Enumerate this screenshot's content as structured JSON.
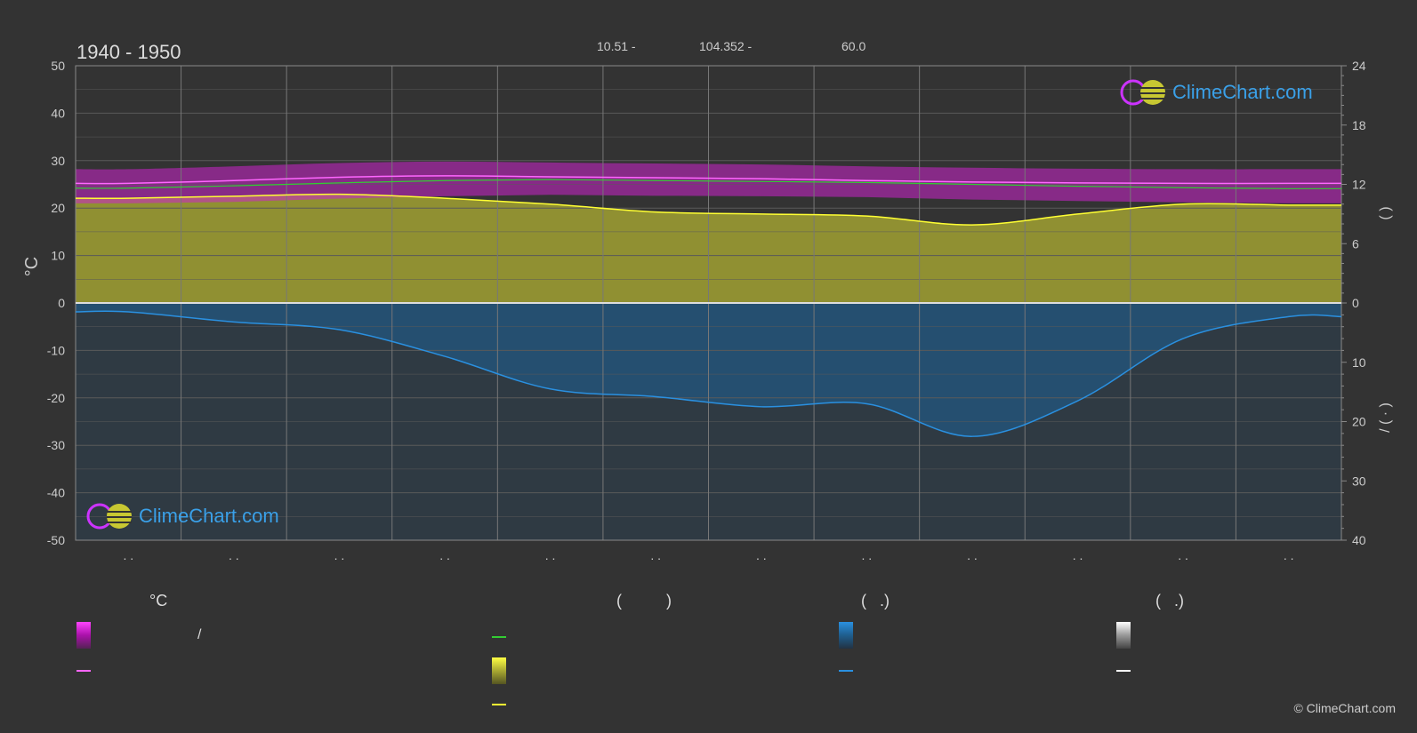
{
  "header": {
    "title": "1940 - 1950",
    "coord1": "10.51 -",
    "coord2": "104.352 -",
    "elevation": "60.0"
  },
  "watermark": {
    "text": "ClimeChart.com"
  },
  "copyright": "© ClimeChart.com",
  "legend": {
    "heads": [
      {
        "id": "temp",
        "text": "°C"
      },
      {
        "id": "sun",
        "text": "(          )"
      },
      {
        "id": "rain",
        "text": "(   .)"
      },
      {
        "id": "snow",
        "text": "(   .)"
      }
    ],
    "temp_range_sep": "/"
  },
  "colors": {
    "background": "#333333",
    "grid": "#5a5a5a",
    "temp_band": "#cc22cc",
    "max_line": "#ff66ff",
    "mean_line": "#33cc33",
    "sunshine_fill": "#a8a832",
    "sunshine_line": "#ffff33",
    "rain_fill": "#1f5e8e",
    "rain_line": "#2a90e0",
    "snow_fill": "#dddddd",
    "snow_line": "#ffffff"
  },
  "chart_data": {
    "type": "area",
    "x_months": [
      1,
      2,
      3,
      4,
      5,
      6,
      7,
      8,
      9,
      10,
      11,
      12
    ],
    "x_tick_labels": [
      ". .",
      ". .",
      ". .",
      ". .",
      ". .",
      ". .",
      ". .",
      ". .",
      ". .",
      ". .",
      ". .",
      ". ."
    ],
    "left_axis": {
      "label": "°C",
      "range": [
        -50,
        50
      ],
      "ticks": [
        50,
        40,
        30,
        20,
        10,
        0,
        -10,
        -20,
        -30,
        -40,
        -50
      ]
    },
    "right_axis_top": {
      "range": [
        0,
        24
      ],
      "ticks": [
        24,
        18,
        12,
        6,
        0
      ],
      "label": "(          )"
    },
    "right_axis_bottom": {
      "range": [
        0,
        40
      ],
      "ticks": [
        0,
        10,
        20,
        30,
        40
      ],
      "label": "/ (  ·  )"
    },
    "series": [
      {
        "id": "max_temp",
        "values": [
          25.2,
          25.8,
          26.5,
          26.8,
          26.6,
          26.4,
          26.2,
          25.8,
          25.5,
          25.3,
          25.2,
          25.2
        ]
      },
      {
        "id": "mean_temp",
        "values": [
          24.2,
          24.7,
          25.3,
          25.8,
          26.0,
          25.8,
          25.6,
          25.4,
          25.0,
          24.6,
          24.3,
          24.1
        ]
      },
      {
        "id": "min_temp",
        "values": [
          23.0,
          23.3,
          24.0,
          24.5,
          24.8,
          24.6,
          24.5,
          24.3,
          23.8,
          23.5,
          23.2,
          23.0
        ]
      },
      {
        "id": "sunshine_hours",
        "values": [
          10.6,
          10.8,
          11.0,
          10.6,
          10.0,
          9.2,
          9.0,
          8.8,
          7.9,
          9.0,
          10.0,
          9.9
        ]
      },
      {
        "id": "rain_mm_per_day",
        "values": [
          1.5,
          3.2,
          4.5,
          9.0,
          14.5,
          15.8,
          17.5,
          17.0,
          22.5,
          16.5,
          6.0,
          2.3
        ]
      }
    ]
  }
}
